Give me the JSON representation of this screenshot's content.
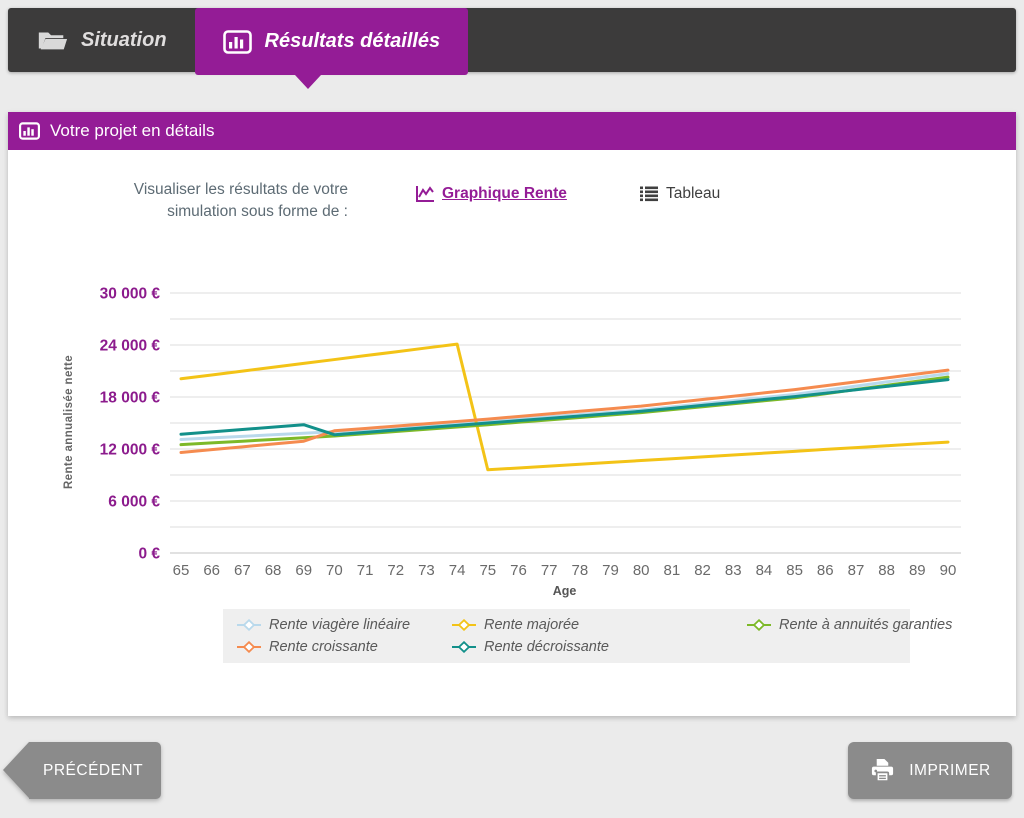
{
  "tabs": {
    "situation": "Situation",
    "results": "Résultats détaillés"
  },
  "panel": {
    "title": "Votre projet en détails"
  },
  "view_switch": {
    "prompt_line1": "Visualiser les résultats de votre",
    "prompt_line2": "simulation sous forme de :",
    "graph_link": "Graphique Rente",
    "table_link": "Tableau"
  },
  "chart_data": {
    "type": "line",
    "xlabel": "Age",
    "ylabel": "Rente annualisée nette",
    "x": [
      65,
      66,
      67,
      68,
      69,
      70,
      71,
      72,
      73,
      74,
      75,
      76,
      77,
      78,
      79,
      80,
      81,
      82,
      83,
      84,
      85,
      86,
      87,
      88,
      89,
      90
    ],
    "ylim": [
      0,
      30000
    ],
    "grid_step": 3000,
    "grid": true,
    "legend_position": "bottom",
    "y_ticks": [
      {
        "value": 0,
        "label": "0 €"
      },
      {
        "value": 6000,
        "label": "6 000 €"
      },
      {
        "value": 12000,
        "label": "12 000 €"
      },
      {
        "value": 18000,
        "label": "18 000 €"
      },
      {
        "value": 24000,
        "label": "24 000 €"
      },
      {
        "value": 30000,
        "label": "30 000 €"
      }
    ],
    "series": [
      {
        "name": "Rente viagère linéaire",
        "color": "#b9d9ec",
        "values": [
          13100,
          13280,
          13460,
          13640,
          13820,
          14000,
          14240,
          14480,
          14720,
          14960,
          15200,
          15460,
          15720,
          15980,
          16240,
          16500,
          16860,
          17220,
          17580,
          17940,
          18300,
          18780,
          19260,
          19740,
          20220,
          20700
        ]
      },
      {
        "name": "Rente majorée",
        "color": "#f3c317",
        "values": [
          20100,
          20540,
          20990,
          21430,
          21880,
          22320,
          22770,
          23210,
          23660,
          24100,
          9600,
          9810,
          10030,
          10240,
          10450,
          10670,
          10880,
          11090,
          11310,
          11520,
          11730,
          11950,
          12160,
          12370,
          12590,
          12800
        ]
      },
      {
        "name": "Rente à annuités garanties",
        "color": "#7db928",
        "values": [
          12500,
          12700,
          12900,
          13100,
          13300,
          13500,
          13760,
          14020,
          14280,
          14540,
          14800,
          15080,
          15360,
          15640,
          15920,
          16200,
          16540,
          16880,
          17220,
          17560,
          17900,
          18380,
          18860,
          19340,
          19820,
          20300
        ]
      },
      {
        "name": "Rente croissante",
        "color": "#f58b4f",
        "values": [
          11600,
          11925,
          12250,
          12575,
          12900,
          14100,
          14370,
          14640,
          14910,
          15180,
          15450,
          15750,
          16050,
          16350,
          16650,
          16950,
          17330,
          17710,
          18090,
          18470,
          18850,
          19300,
          19750,
          20200,
          20650,
          21100
        ]
      },
      {
        "name": "Rente décroissante",
        "color": "#12908a",
        "values": [
          13700,
          13975,
          14250,
          14525,
          14800,
          13650,
          13920,
          14190,
          14460,
          14730,
          15000,
          15270,
          15540,
          15810,
          16080,
          16350,
          16690,
          17030,
          17370,
          17710,
          18050,
          18440,
          18830,
          19220,
          19610,
          20000
        ]
      }
    ]
  },
  "buttons": {
    "previous": "PRÉCÉDENT",
    "print": "IMPRIMER"
  },
  "colors": {
    "accent": "#941c96",
    "tabbar": "#3c3b3b",
    "button_gray": "#8b8b8b",
    "ytick_purple": "#8c1b8d",
    "legend_bg": "#efefef"
  }
}
